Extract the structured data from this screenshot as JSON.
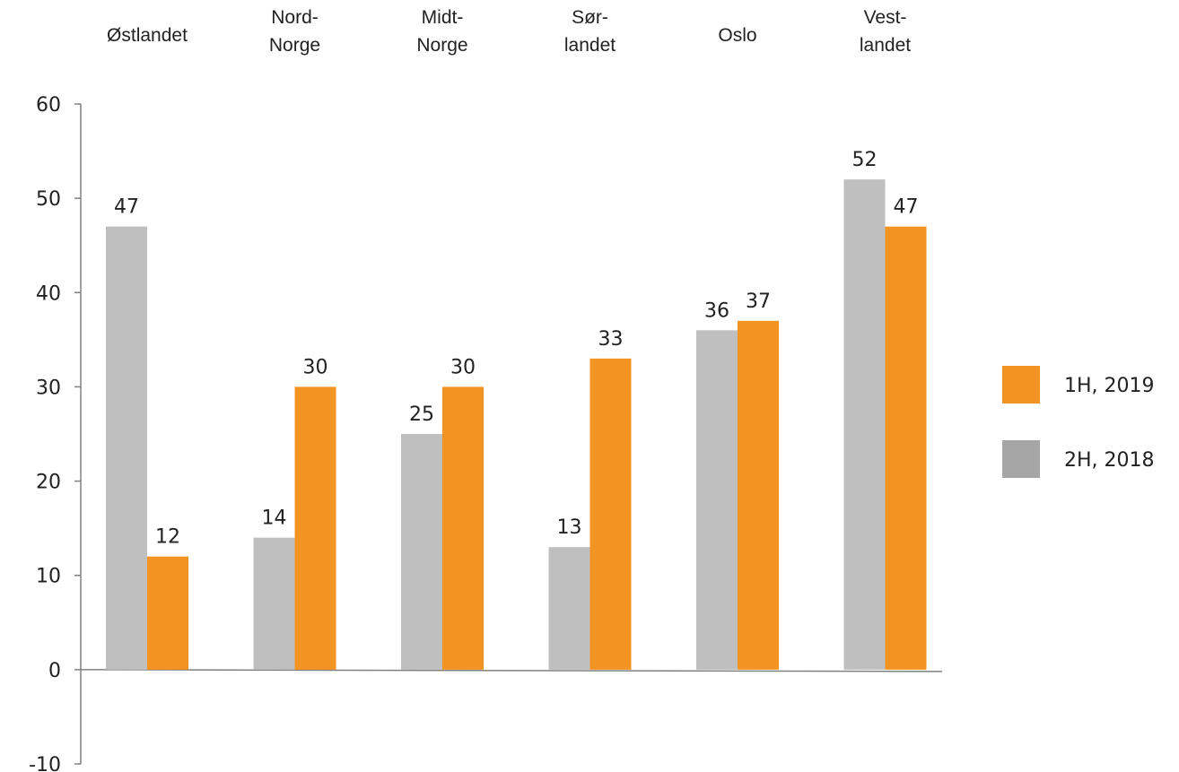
{
  "chart_data": {
    "type": "bar",
    "categories": [
      [
        "Østlandet"
      ],
      [
        "Nord-",
        "Norge"
      ],
      [
        "Midt-",
        "Norge"
      ],
      [
        "Sør-",
        "landet"
      ],
      [
        "Oslo"
      ],
      [
        "Vest-",
        "landet"
      ]
    ],
    "series": [
      {
        "name": "2H, 2018",
        "color": "#BFBFBF",
        "values": [
          47,
          14,
          25,
          13,
          36,
          52
        ]
      },
      {
        "name": "1H, 2019",
        "color": "#F39321",
        "values": [
          12,
          30,
          30,
          33,
          37,
          47
        ]
      }
    ],
    "ylim": [
      -10,
      60
    ],
    "yticks": [
      60,
      50,
      40,
      30,
      20,
      10,
      0,
      -10
    ],
    "category_position": "top",
    "legend_position": "right",
    "legend_order": [
      "1H, 2019",
      "2H, 2018"
    ],
    "legend_colors": {
      "1H, 2019": "#F39321",
      "2H, 2018": "#A6A6A6"
    },
    "grid": false,
    "title": "",
    "xlabel": "",
    "ylabel": ""
  }
}
